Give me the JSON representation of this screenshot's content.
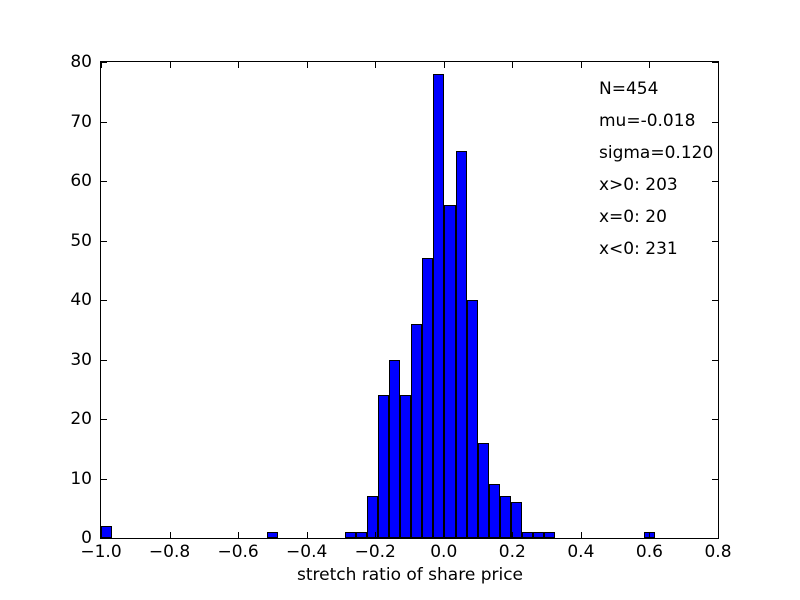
{
  "colors": {
    "bar_fill": "#0000ff",
    "bar_edge": "#000000",
    "axis": "#000000",
    "background": "#ffffff"
  },
  "chart_data": {
    "type": "bar",
    "subtype": "histogram",
    "title": "",
    "xlabel": "stretch ratio of share price",
    "ylabel": "",
    "xlim": [
      -1.0,
      0.8
    ],
    "ylim": [
      0,
      80
    ],
    "grid": false,
    "legend": null,
    "bin_width": 0.0323,
    "xticks": [
      {
        "value": -1.0,
        "label": "−1.0"
      },
      {
        "value": -0.8,
        "label": "−0.8"
      },
      {
        "value": -0.6,
        "label": "−0.6"
      },
      {
        "value": -0.4,
        "label": "−0.4"
      },
      {
        "value": -0.2,
        "label": "−0.2"
      },
      {
        "value": 0.0,
        "label": "0.0"
      },
      {
        "value": 0.2,
        "label": "0.2"
      },
      {
        "value": 0.4,
        "label": "0.4"
      },
      {
        "value": 0.6,
        "label": "0.6"
      },
      {
        "value": 0.8,
        "label": "0.8"
      }
    ],
    "yticks": [
      {
        "value": 0,
        "label": "0"
      },
      {
        "value": 10,
        "label": "10"
      },
      {
        "value": 20,
        "label": "20"
      },
      {
        "value": 30,
        "label": "30"
      },
      {
        "value": 40,
        "label": "40"
      },
      {
        "value": 50,
        "label": "50"
      },
      {
        "value": 60,
        "label": "60"
      },
      {
        "value": 70,
        "label": "70"
      },
      {
        "value": 80,
        "label": "80"
      }
    ],
    "bars": [
      {
        "x": -0.9993,
        "count": 2
      },
      {
        "x": -0.5148,
        "count": 1
      },
      {
        "x": -0.2887,
        "count": 1
      },
      {
        "x": -0.2564,
        "count": 1
      },
      {
        "x": -0.2241,
        "count": 7
      },
      {
        "x": -0.1918,
        "count": 24
      },
      {
        "x": -0.1595,
        "count": 30
      },
      {
        "x": -0.1272,
        "count": 24
      },
      {
        "x": -0.0949,
        "count": 36
      },
      {
        "x": -0.0626,
        "count": 47
      },
      {
        "x": -0.0303,
        "count": 78
      },
      {
        "x": 0.002,
        "count": 56
      },
      {
        "x": 0.0343,
        "count": 65
      },
      {
        "x": 0.0666,
        "count": 40
      },
      {
        "x": 0.0989,
        "count": 16
      },
      {
        "x": 0.1312,
        "count": 9
      },
      {
        "x": 0.1635,
        "count": 7
      },
      {
        "x": 0.1958,
        "count": 6
      },
      {
        "x": 0.2281,
        "count": 1
      },
      {
        "x": 0.2604,
        "count": 1
      },
      {
        "x": 0.2927,
        "count": 1
      },
      {
        "x": 0.5834,
        "count": 1
      }
    ],
    "annotation": {
      "lines": [
        "N=454",
        "mu=-0.018",
        "sigma=0.120",
        "x>0: 203",
        "x=0: 20",
        "x<0: 231"
      ],
      "stats": {
        "N": 454,
        "mu": -0.018,
        "sigma": 0.12,
        "x_positive": 203,
        "x_zero": 20,
        "x_negative": 231
      }
    }
  }
}
